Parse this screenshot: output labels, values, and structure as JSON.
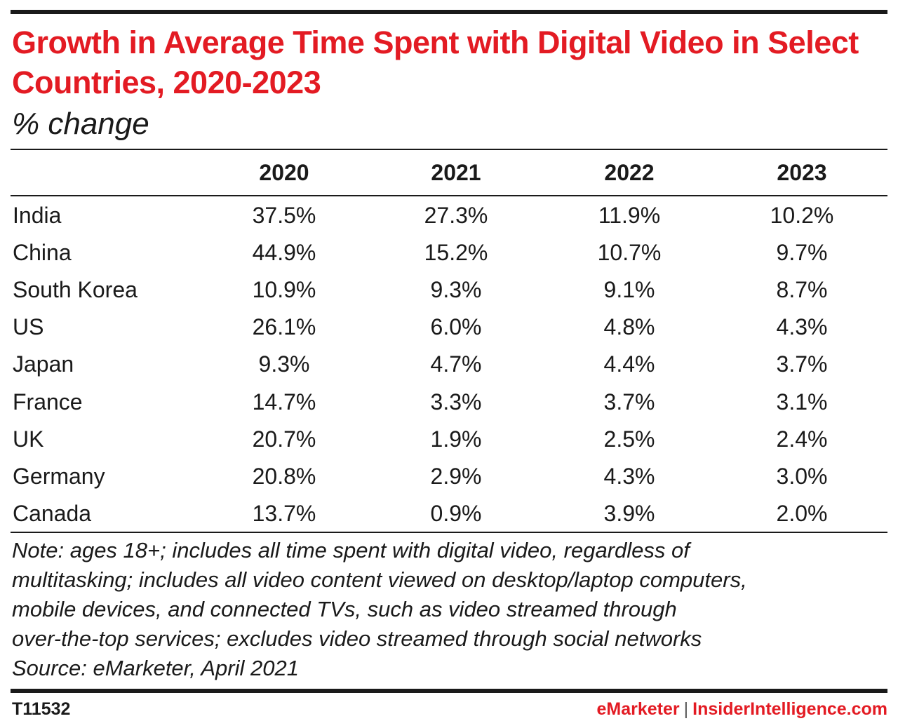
{
  "title": "Growth in Average Time Spent with Digital Video in Select Countries, 2020-2023",
  "subtitle": "% change",
  "colors": {
    "accent": "#e31b23",
    "text": "#1a1a1a"
  },
  "chart_data": {
    "type": "table",
    "title": "Growth in Average Time Spent with Digital Video in Select Countries, 2020-2023",
    "subtitle": "% change",
    "columns": [
      "2020",
      "2021",
      "2022",
      "2023"
    ],
    "rows": [
      {
        "label": "India",
        "values": [
          "37.5%",
          "27.3%",
          "11.9%",
          "10.2%"
        ]
      },
      {
        "label": "China",
        "values": [
          "44.9%",
          "15.2%",
          "10.7%",
          "9.7%"
        ]
      },
      {
        "label": "South Korea",
        "values": [
          "10.9%",
          "9.3%",
          "9.1%",
          "8.7%"
        ]
      },
      {
        "label": "US",
        "values": [
          "26.1%",
          "6.0%",
          "4.8%",
          "4.3%"
        ]
      },
      {
        "label": "Japan",
        "values": [
          "9.3%",
          "4.7%",
          "4.4%",
          "3.7%"
        ]
      },
      {
        "label": "France",
        "values": [
          "14.7%",
          "3.3%",
          "3.7%",
          "3.1%"
        ]
      },
      {
        "label": "UK",
        "values": [
          "20.7%",
          "1.9%",
          "2.5%",
          "2.4%"
        ]
      },
      {
        "label": "Germany",
        "values": [
          "20.8%",
          "2.9%",
          "4.3%",
          "3.0%"
        ]
      },
      {
        "label": "Canada",
        "values": [
          "13.7%",
          "0.9%",
          "3.9%",
          "2.0%"
        ]
      }
    ]
  },
  "note_lines": [
    "Note: ages 18+; includes all time spent with digital video, regardless of",
    "multitasking; includes all video content viewed on desktop/laptop computers,",
    "mobile devices, and connected TVs, such as video streamed through",
    "over-the-top services; excludes video streamed through social networks",
    "Source: eMarketer, April 2021"
  ],
  "footer": {
    "id": "T11532",
    "brand_left": "eMarketer",
    "separator": "|",
    "brand_right": "InsiderIntelligence.com"
  }
}
